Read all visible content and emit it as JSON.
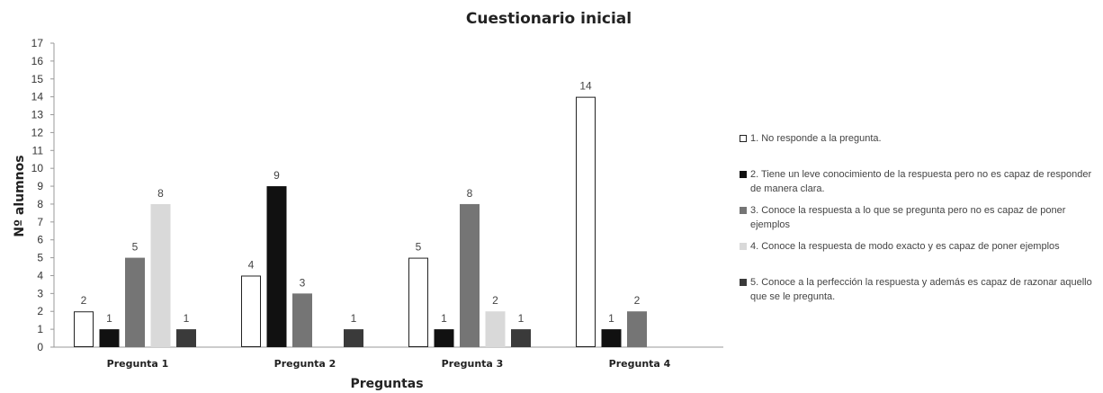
{
  "chart_data": {
    "type": "bar",
    "title": "Cuestionario inicial",
    "xlabel": "Preguntas",
    "ylabel": "Nº alumnos",
    "ylim": [
      0,
      17
    ],
    "yticks": [
      0,
      1,
      2,
      3,
      4,
      5,
      6,
      7,
      8,
      9,
      10,
      11,
      12,
      13,
      14,
      15,
      16,
      17
    ],
    "categories": [
      "Pregunta 1",
      "Pregunta 2",
      "Pregunta 3",
      "Pregunta 4"
    ],
    "series": [
      {
        "name": "1. No responde a la pregunta.",
        "values": [
          2,
          4,
          5,
          14
        ],
        "color": "#ffffff",
        "stroke": "#222222"
      },
      {
        "name": "2. Tiene un leve conocimiento de la respuesta pero no es capaz de responder de manera clara.",
        "values": [
          1,
          9,
          1,
          1
        ],
        "color": "#111111",
        "stroke": "#111111"
      },
      {
        "name": "3. Conoce la respuesta a lo que se pregunta pero no es capaz de poner ejemplos",
        "values": [
          5,
          3,
          8,
          2
        ],
        "color": "#757575",
        "stroke": "#757575"
      },
      {
        "name": "4. Conoce la respuesta de modo exacto y es capaz de poner ejemplos",
        "values": [
          8,
          null,
          2,
          null
        ],
        "color": "#d9d9d9",
        "stroke": "#d9d9d9"
      },
      {
        "name": "5. Conoce a la perfección la respuesta y además es capaz de razonar aquello que se le pregunta.",
        "values": [
          1,
          1,
          1,
          null
        ],
        "color": "#3a3a3a",
        "stroke": "#3a3a3a"
      }
    ],
    "grid": false,
    "legend_position": "right"
  }
}
